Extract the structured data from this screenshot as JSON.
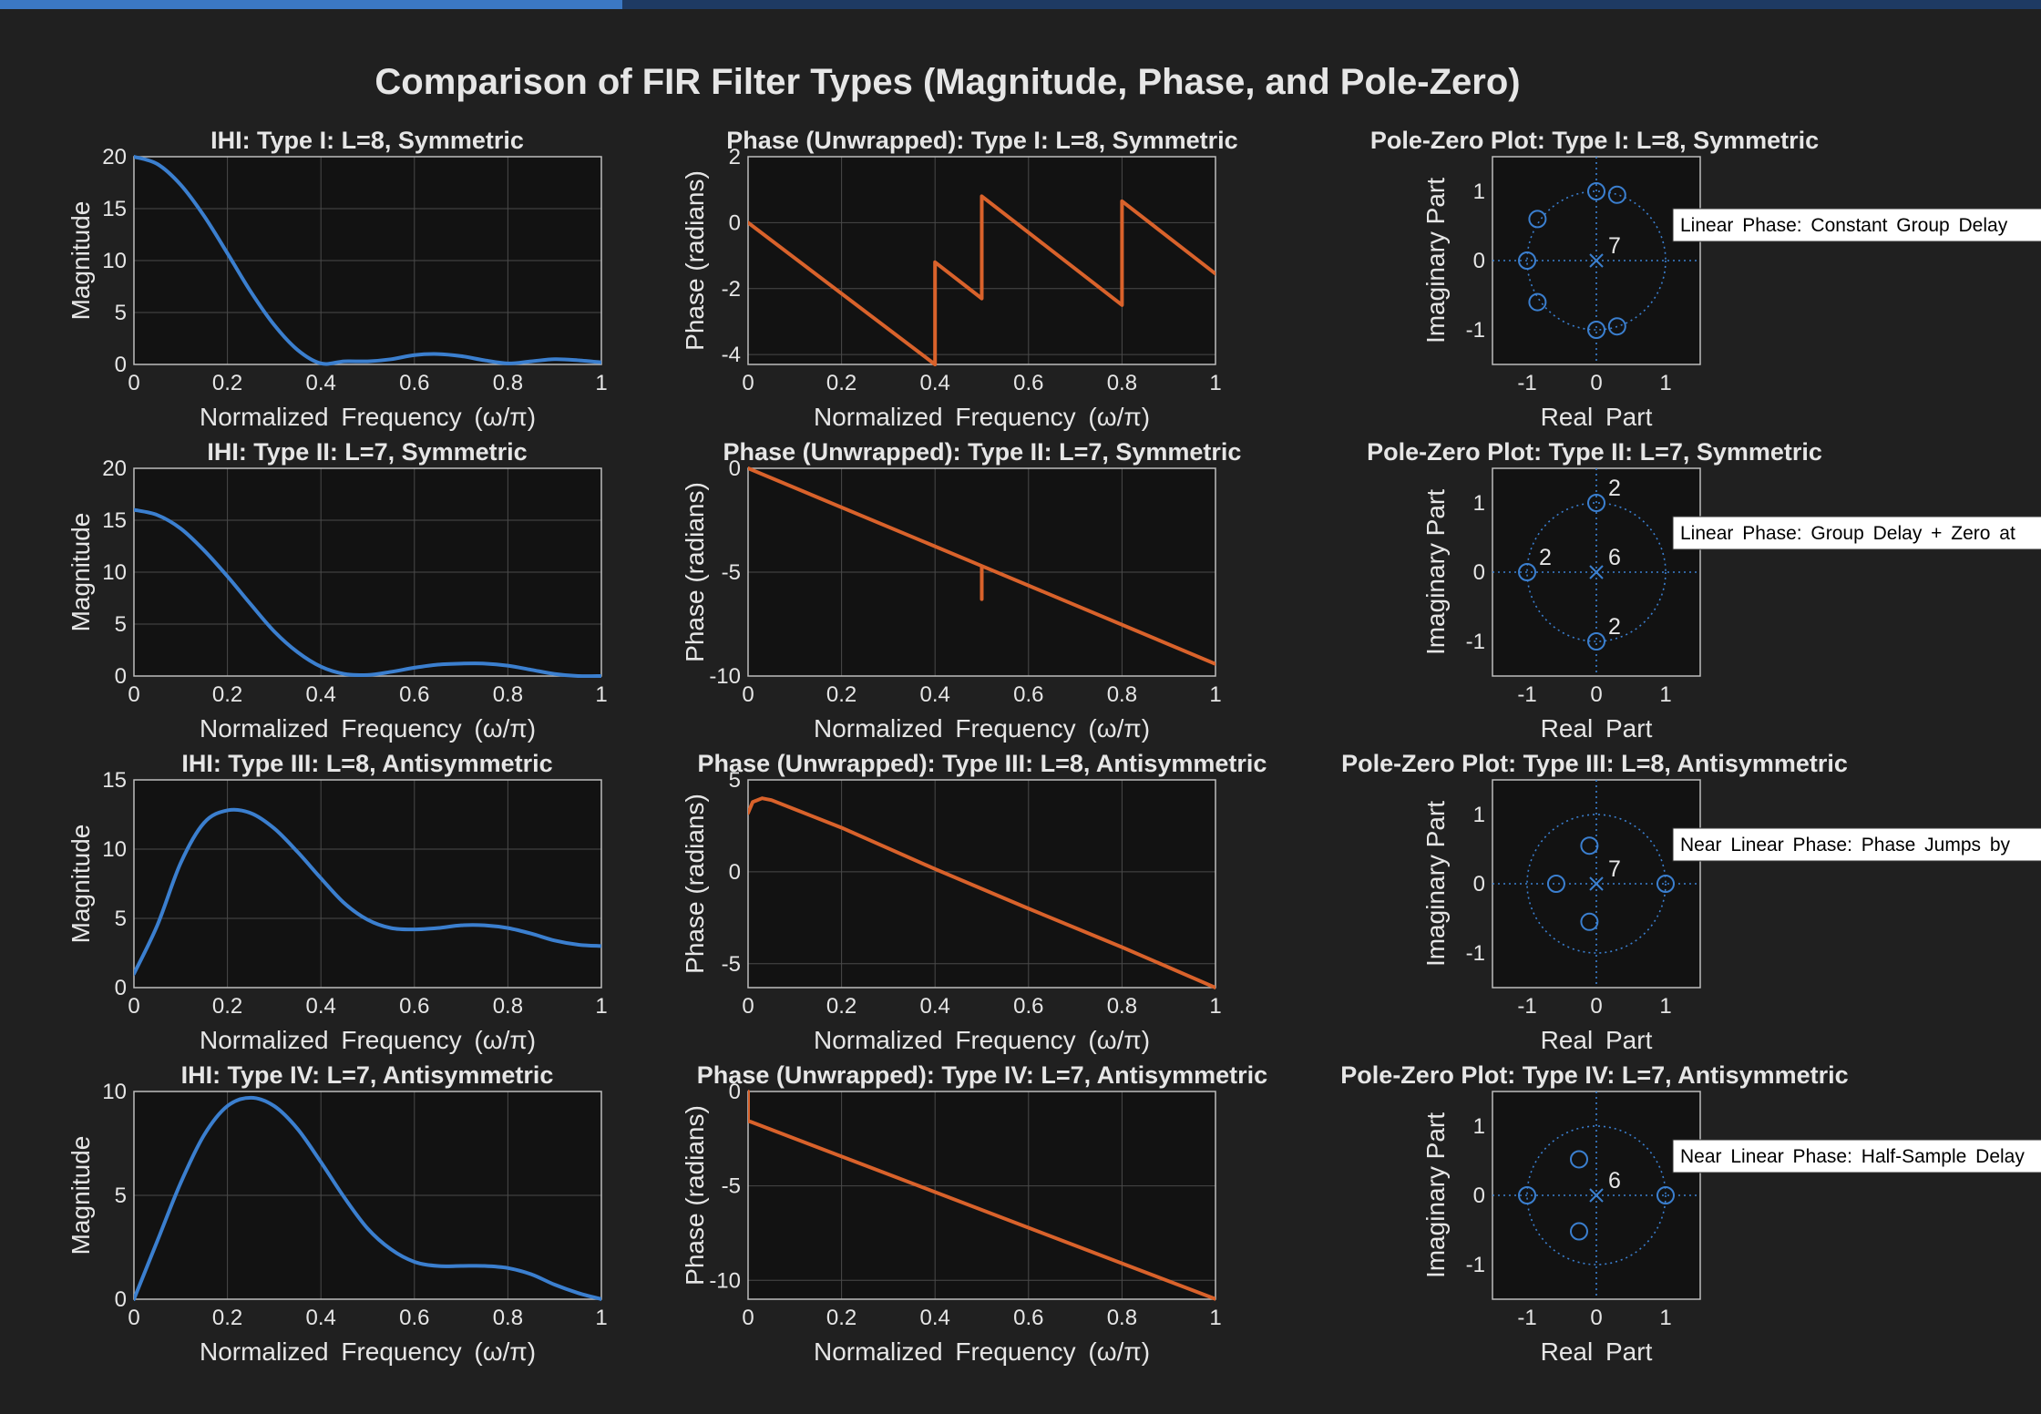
{
  "app": {
    "title": "Comparison of FIR Filter Types (Magnitude, Phase, and Pole-Zero)",
    "progress_fraction": 0.305
  },
  "colors": {
    "background": "#202020",
    "axes_background": "#121212",
    "text": "#e6e6e6",
    "grid": "#4a4a4a",
    "magnitude_line": "#3b7fcf",
    "phase_line": "#d9622b",
    "polezero": "#3b7fcf"
  },
  "chart_data": [
    {
      "type": "line",
      "kind": "magnitude",
      "title": "IHI: Type I: L=8, Symmetric",
      "xlabel": "Normalized Frequency (ω/π)",
      "ylabel": "Magnitude",
      "xlim": [
        0,
        1
      ],
      "ylim": [
        0,
        20
      ],
      "xticks": [
        0,
        0.2,
        0.4,
        0.6,
        0.8,
        1
      ],
      "yticks": [
        0,
        5,
        10,
        15,
        20
      ],
      "xticklabels": [
        "0",
        "0.2",
        "0.4",
        "0.6",
        "0.8",
        "1"
      ],
      "yticklabels": [
        "0",
        "5",
        "10",
        "15",
        "20"
      ],
      "grid": true,
      "x": [
        0,
        0.05,
        0.1,
        0.15,
        0.2,
        0.25,
        0.3,
        0.35,
        0.4,
        0.45,
        0.5,
        0.55,
        0.6,
        0.65,
        0.7,
        0.75,
        0.8,
        0.85,
        0.9,
        0.95,
        1.0
      ],
      "y": [
        20,
        19.3,
        17.3,
        14.3,
        10.7,
        7.0,
        3.8,
        1.4,
        0.1,
        0.3,
        0.3,
        0.5,
        0.9,
        1.0,
        0.8,
        0.4,
        0.1,
        0.3,
        0.5,
        0.4,
        0.2
      ]
    },
    {
      "type": "line",
      "kind": "phase",
      "title": "Phase (Unwrapped): Type I: L=8, Symmetric",
      "xlabel": "Normalized Frequency (ω/π)",
      "ylabel": "Phase (radians)",
      "xlim": [
        0,
        1
      ],
      "ylim": [
        -4.3,
        2
      ],
      "xticks": [
        0,
        0.2,
        0.4,
        0.6,
        0.8,
        1
      ],
      "yticks": [
        -4,
        -2,
        0,
        2
      ],
      "xticklabels": [
        "0",
        "0.2",
        "0.4",
        "0.6",
        "0.8",
        "1"
      ],
      "yticklabels": [
        "-4",
        "-2",
        "0",
        "2"
      ],
      "grid": true,
      "x": [
        0,
        0.4,
        0.4,
        0.5,
        0.5,
        0.8,
        0.8,
        1.0
      ],
      "y": [
        0,
        -4.3,
        -1.2,
        -2.3,
        0.8,
        -2.5,
        0.65,
        -1.55
      ]
    },
    {
      "type": "scatter",
      "kind": "polezero",
      "title": "Pole-Zero Plot: Type I: L=8, Symmetric",
      "xlabel": "Real Part",
      "ylabel": "Imaginary Part",
      "xlim": [
        -1.5,
        1.5
      ],
      "ylim": [
        -1.5,
        1.5
      ],
      "xticks": [
        -1,
        0,
        1
      ],
      "yticks": [
        -1,
        0,
        1
      ],
      "xticklabels": [
        "-1",
        "0",
        "1"
      ],
      "yticklabels": [
        "-1",
        "0",
        "1"
      ],
      "zeros": [
        [
          -1,
          0
        ],
        [
          -0.85,
          0.6
        ],
        [
          -0.85,
          -0.6
        ],
        [
          0,
          1
        ],
        [
          0,
          -1
        ],
        [
          0.3,
          0.95
        ],
        [
          0.3,
          -0.95
        ]
      ],
      "poles": [
        [
          0,
          0
        ]
      ],
      "multiplicity_labels": [
        {
          "x": 0,
          "y": 0,
          "text": "7"
        }
      ],
      "annotation": "Linear Phase: Constant Group Delay"
    },
    {
      "type": "line",
      "kind": "magnitude",
      "title": "IHI: Type II: L=7, Symmetric",
      "xlabel": "Normalized Frequency (ω/π)",
      "ylabel": "Magnitude",
      "xlim": [
        0,
        1
      ],
      "ylim": [
        0,
        20
      ],
      "xticks": [
        0,
        0.2,
        0.4,
        0.6,
        0.8,
        1
      ],
      "yticks": [
        0,
        5,
        10,
        15,
        20
      ],
      "xticklabels": [
        "0",
        "0.2",
        "0.4",
        "0.6",
        "0.8",
        "1"
      ],
      "yticklabels": [
        "0",
        "5",
        "10",
        "15",
        "20"
      ],
      "grid": true,
      "x": [
        0,
        0.05,
        0.1,
        0.15,
        0.2,
        0.25,
        0.3,
        0.35,
        0.4,
        0.45,
        0.5,
        0.55,
        0.6,
        0.65,
        0.7,
        0.75,
        0.8,
        0.85,
        0.9,
        0.95,
        1.0
      ],
      "y": [
        16,
        15.5,
        14.2,
        12.1,
        9.6,
        6.9,
        4.3,
        2.3,
        0.9,
        0.2,
        0.1,
        0.4,
        0.8,
        1.1,
        1.2,
        1.2,
        1.0,
        0.6,
        0.2,
        0.0,
        0.0
      ]
    },
    {
      "type": "line",
      "kind": "phase",
      "title": "Phase (Unwrapped): Type II: L=7, Symmetric",
      "xlabel": "Normalized Frequency (ω/π)",
      "ylabel": "Phase (radians)",
      "xlim": [
        0,
        1
      ],
      "ylim": [
        -10,
        0
      ],
      "xticks": [
        0,
        0.2,
        0.4,
        0.6,
        0.8,
        1
      ],
      "yticks": [
        -10,
        -5,
        0
      ],
      "xticklabels": [
        "0",
        "0.2",
        "0.4",
        "0.6",
        "0.8",
        "1"
      ],
      "yticklabels": [
        "-10",
        "-5",
        "0"
      ],
      "grid": true,
      "x": [
        0,
        0.5,
        0.5,
        0.5,
        0.5,
        1.0
      ],
      "y": [
        0,
        -4.7,
        -6.3,
        -4.7,
        -4.7,
        -9.42
      ]
    },
    {
      "type": "scatter",
      "kind": "polezero",
      "title": "Pole-Zero Plot: Type II: L=7, Symmetric",
      "xlabel": "Real Part",
      "ylabel": "Imaginary Part",
      "xlim": [
        -1.5,
        1.5
      ],
      "ylim": [
        -1.5,
        1.5
      ],
      "xticks": [
        -1,
        0,
        1
      ],
      "yticks": [
        -1,
        0,
        1
      ],
      "xticklabels": [
        "-1",
        "0",
        "1"
      ],
      "yticklabels": [
        "-1",
        "0",
        "1"
      ],
      "zeros": [
        [
          -1,
          0
        ],
        [
          0,
          1
        ],
        [
          0,
          -1
        ]
      ],
      "poles": [
        [
          0,
          0
        ]
      ],
      "multiplicity_labels": [
        {
          "x": -1,
          "y": 0,
          "text": "2"
        },
        {
          "x": 0,
          "y": 1,
          "text": "2"
        },
        {
          "x": 0,
          "y": -1,
          "text": "2"
        },
        {
          "x": 0,
          "y": 0,
          "text": "6"
        }
      ],
      "annotation": "Linear Phase: Group Delay + Zero at"
    },
    {
      "type": "line",
      "kind": "magnitude",
      "title": "IHI: Type III: L=8, Antisymmetric",
      "xlabel": "Normalized Frequency (ω/π)",
      "ylabel": "Magnitude",
      "xlim": [
        0,
        1
      ],
      "ylim": [
        0,
        15
      ],
      "xticks": [
        0,
        0.2,
        0.4,
        0.6,
        0.8,
        1
      ],
      "yticks": [
        0,
        5,
        10,
        15
      ],
      "xticklabels": [
        "0",
        "0.2",
        "0.4",
        "0.6",
        "0.8",
        "1"
      ],
      "yticklabels": [
        "0",
        "5",
        "10",
        "15"
      ],
      "grid": true,
      "x": [
        0,
        0.05,
        0.1,
        0.15,
        0.2,
        0.25,
        0.3,
        0.35,
        0.4,
        0.45,
        0.5,
        0.55,
        0.6,
        0.65,
        0.7,
        0.75,
        0.8,
        0.85,
        0.9,
        0.95,
        1.0
      ],
      "y": [
        1.0,
        4.5,
        9.0,
        11.9,
        12.8,
        12.6,
        11.5,
        9.8,
        7.9,
        6.1,
        4.9,
        4.3,
        4.2,
        4.3,
        4.5,
        4.5,
        4.3,
        3.9,
        3.4,
        3.1,
        3.0
      ]
    },
    {
      "type": "line",
      "kind": "phase",
      "title": "Phase (Unwrapped): Type III: L=8, Antisymmetric",
      "xlabel": "Normalized Frequency (ω/π)",
      "ylabel": "Phase (radians)",
      "xlim": [
        0,
        1
      ],
      "ylim": [
        -6.3,
        5
      ],
      "xticks": [
        0,
        0.2,
        0.4,
        0.6,
        0.8,
        1
      ],
      "yticks": [
        -5,
        0,
        5
      ],
      "xticklabels": [
        "0",
        "0.2",
        "0.4",
        "0.6",
        "0.8",
        "1"
      ],
      "yticklabels": [
        "-5",
        "0",
        "5"
      ],
      "grid": true,
      "x": [
        0,
        0.01,
        0.03,
        0.05,
        0.2,
        0.4,
        0.6,
        0.8,
        1.0
      ],
      "y": [
        3.2,
        3.8,
        4.0,
        3.9,
        2.4,
        0.15,
        -2.0,
        -4.1,
        -6.3
      ]
    },
    {
      "type": "scatter",
      "kind": "polezero",
      "title": "Pole-Zero Plot: Type III: L=8, Antisymmetric",
      "xlabel": "Real Part",
      "ylabel": "Imaginary Part",
      "xlim": [
        -1.5,
        1.5
      ],
      "ylim": [
        -1.5,
        1.5
      ],
      "xticks": [
        -1,
        0,
        1
      ],
      "yticks": [
        -1,
        0,
        1
      ],
      "xticklabels": [
        "-1",
        "0",
        "1"
      ],
      "yticklabels": [
        "-1",
        "0",
        "1"
      ],
      "zeros": [
        [
          -0.58,
          0
        ],
        [
          -0.1,
          0.55
        ],
        [
          -0.1,
          -0.55
        ],
        [
          1,
          0
        ]
      ],
      "poles": [
        [
          0,
          0
        ]
      ],
      "multiplicity_labels": [
        {
          "x": 0,
          "y": 0,
          "text": "7"
        }
      ],
      "annotation": "Near Linear Phase: Phase Jumps by"
    },
    {
      "type": "line",
      "kind": "magnitude",
      "title": "IHI: Type IV: L=7, Antisymmetric",
      "xlabel": "Normalized Frequency (ω/π)",
      "ylabel": "Magnitude",
      "xlim": [
        0,
        1
      ],
      "ylim": [
        0,
        10
      ],
      "xticks": [
        0,
        0.2,
        0.4,
        0.6,
        0.8,
        1
      ],
      "yticks": [
        0,
        5,
        10
      ],
      "xticklabels": [
        "0",
        "0.2",
        "0.4",
        "0.6",
        "0.8",
        "1"
      ],
      "yticklabels": [
        "0",
        "5",
        "10"
      ],
      "grid": true,
      "x": [
        0,
        0.05,
        0.1,
        0.15,
        0.2,
        0.25,
        0.3,
        0.35,
        0.4,
        0.45,
        0.5,
        0.55,
        0.6,
        0.65,
        0.7,
        0.75,
        0.8,
        0.85,
        0.9,
        0.95,
        1.0
      ],
      "y": [
        0,
        2.8,
        5.6,
        7.9,
        9.3,
        9.7,
        9.3,
        8.2,
        6.6,
        4.9,
        3.4,
        2.4,
        1.8,
        1.6,
        1.6,
        1.6,
        1.5,
        1.2,
        0.7,
        0.3,
        0.0
      ]
    },
    {
      "type": "line",
      "kind": "phase",
      "title": "Phase (Unwrapped): Type IV: L=7, Antisymmetric",
      "xlabel": "Normalized Frequency (ω/π)",
      "ylabel": "Phase (radians)",
      "xlim": [
        0,
        1
      ],
      "ylim": [
        -11,
        0
      ],
      "xticks": [
        0,
        0.2,
        0.4,
        0.6,
        0.8,
        1
      ],
      "yticks": [
        -10,
        -5,
        0
      ],
      "xticklabels": [
        "0",
        "0.2",
        "0.4",
        "0.6",
        "0.8",
        "1"
      ],
      "yticklabels": [
        "-10",
        "-5",
        "0"
      ],
      "grid": true,
      "x": [
        0,
        0,
        0.005,
        1.0
      ],
      "y": [
        0,
        -1.57,
        -1.6,
        -10.99
      ]
    },
    {
      "type": "scatter",
      "kind": "polezero",
      "title": "Pole-Zero Plot: Type IV: L=7, Antisymmetric",
      "xlabel": "Real Part",
      "ylabel": "Imaginary Part",
      "xlim": [
        -1.5,
        1.5
      ],
      "ylim": [
        -1.5,
        1.5
      ],
      "xticks": [
        -1,
        0,
        1
      ],
      "yticks": [
        -1,
        0,
        1
      ],
      "xticklabels": [
        "-1",
        "0",
        "1"
      ],
      "yticklabels": [
        "-1",
        "0",
        "1"
      ],
      "zeros": [
        [
          -1,
          0
        ],
        [
          -0.25,
          0.52
        ],
        [
          -0.25,
          -0.52
        ],
        [
          1,
          0
        ]
      ],
      "poles": [
        [
          0,
          0
        ]
      ],
      "multiplicity_labels": [
        {
          "x": 0,
          "y": 0,
          "text": "6"
        }
      ],
      "annotation": "Near Linear Phase: Half-Sample Delay"
    }
  ]
}
